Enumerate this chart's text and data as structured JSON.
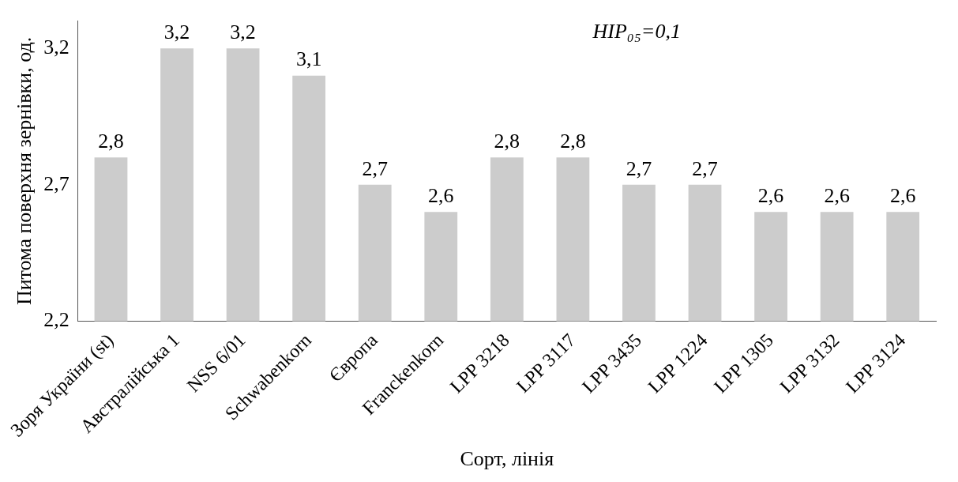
{
  "chart_data": {
    "type": "bar",
    "xlabel": "Сорт, лінія",
    "ylabel": "Питома поверхня зернівки, од.",
    "categories": [
      "Зоря України (st)",
      "Австралійська 1",
      "NSS 6/01",
      "Schwabenkorn",
      "Європа",
      "Franckenkorn",
      "LPP 3218",
      "LPP 3117",
      "LPP 3435",
      "LPP 1224",
      "LPP 1305",
      "LPP 3132",
      "LPP 3124"
    ],
    "values": [
      2.8,
      3.2,
      3.2,
      3.1,
      2.7,
      2.6,
      2.8,
      2.8,
      2.7,
      2.7,
      2.6,
      2.6,
      2.6
    ],
    "value_labels": [
      "2,8",
      "3,2",
      "3,2",
      "3,1",
      "2,7",
      "2,6",
      "2,8",
      "2,8",
      "2,7",
      "2,7",
      "2,6",
      "2,6",
      "2,6"
    ],
    "color": "#cccccc",
    "ylim": [
      2.2,
      3.3
    ],
    "yticks": [
      {
        "value": 2.2,
        "label": "2,2"
      },
      {
        "value": 2.7,
        "label": "2,7"
      },
      {
        "value": 3.2,
        "label": "3,2"
      }
    ],
    "grid": false,
    "legend": false,
    "annotations": [
      "HIP₀₅=0,1"
    ]
  }
}
